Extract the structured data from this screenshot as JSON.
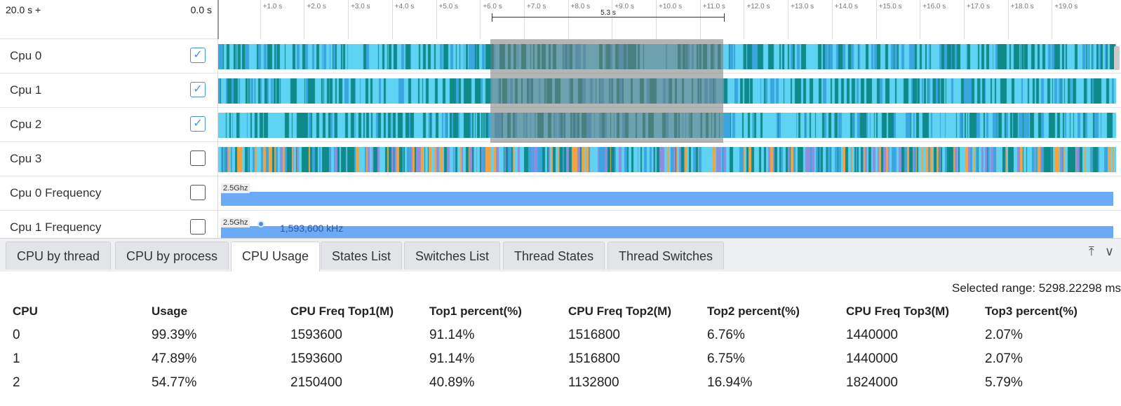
{
  "timeline": {
    "range_start": "20.0 s +",
    "range_end": "0.0 s",
    "ticks": [
      "+1.0 s",
      "+2.0 s",
      "+3.0 s",
      "+4.0 s",
      "+5.0 s",
      "+6.0 s",
      "+7.0 s",
      "+8.0 s",
      "+9.0 s",
      "+10.0 s",
      "+11.0 s",
      "+12.0 s",
      "+13.0 s",
      "+14.0 s",
      "+15.0 s",
      "+16.0 s",
      "+17.0 s",
      "+18.0 s",
      "+19.0 s"
    ],
    "selection_label": "5.3 s",
    "lanes": [
      {
        "name": "Cpu 0",
        "checked": true
      },
      {
        "name": "Cpu 1",
        "checked": true
      },
      {
        "name": "Cpu 2",
        "checked": true
      },
      {
        "name": "Cpu 3",
        "checked": false
      },
      {
        "name": "Cpu 0 Frequency",
        "checked": false,
        "freq_label": "2.5Ghz"
      },
      {
        "name": "Cpu 1 Frequency",
        "checked": false,
        "freq_label": "2.5Ghz",
        "tooltip": "1,593,600 kHz"
      }
    ],
    "colors": {
      "cyan": "#5fd3f3",
      "teal": "#0e8a8a",
      "blue": "#3aa6e0",
      "orange": "#f4a340",
      "purple": "#8c8ee0",
      "freq": "#6aaaf6"
    }
  },
  "tabs": [
    {
      "label": "CPU by thread",
      "active": false
    },
    {
      "label": "CPU by process",
      "active": false
    },
    {
      "label": "CPU Usage",
      "active": true
    },
    {
      "label": "States List",
      "active": false
    },
    {
      "label": "Switches List",
      "active": false
    },
    {
      "label": "Thread States",
      "active": false
    },
    {
      "label": "Thread Switches",
      "active": false
    }
  ],
  "panel": {
    "selected_range": "Selected range: 5298.22298 ms",
    "columns": [
      "CPU",
      "Usage",
      "CPU Freq Top1(M)",
      "Top1 percent(%)",
      "CPU Freq Top2(M)",
      "Top2 percent(%)",
      "CPU Freq Top3(M)",
      "Top3 percent(%)"
    ],
    "rows": [
      [
        "0",
        "99.39%",
        "1593600",
        "91.14%",
        "1516800",
        "6.76%",
        "1440000",
        "2.07%"
      ],
      [
        "1",
        "47.89%",
        "1593600",
        "91.14%",
        "1516800",
        "6.75%",
        "1440000",
        "2.07%"
      ],
      [
        "2",
        "54.77%",
        "2150400",
        "40.89%",
        "1132800",
        "16.94%",
        "1824000",
        "5.79%"
      ]
    ]
  }
}
